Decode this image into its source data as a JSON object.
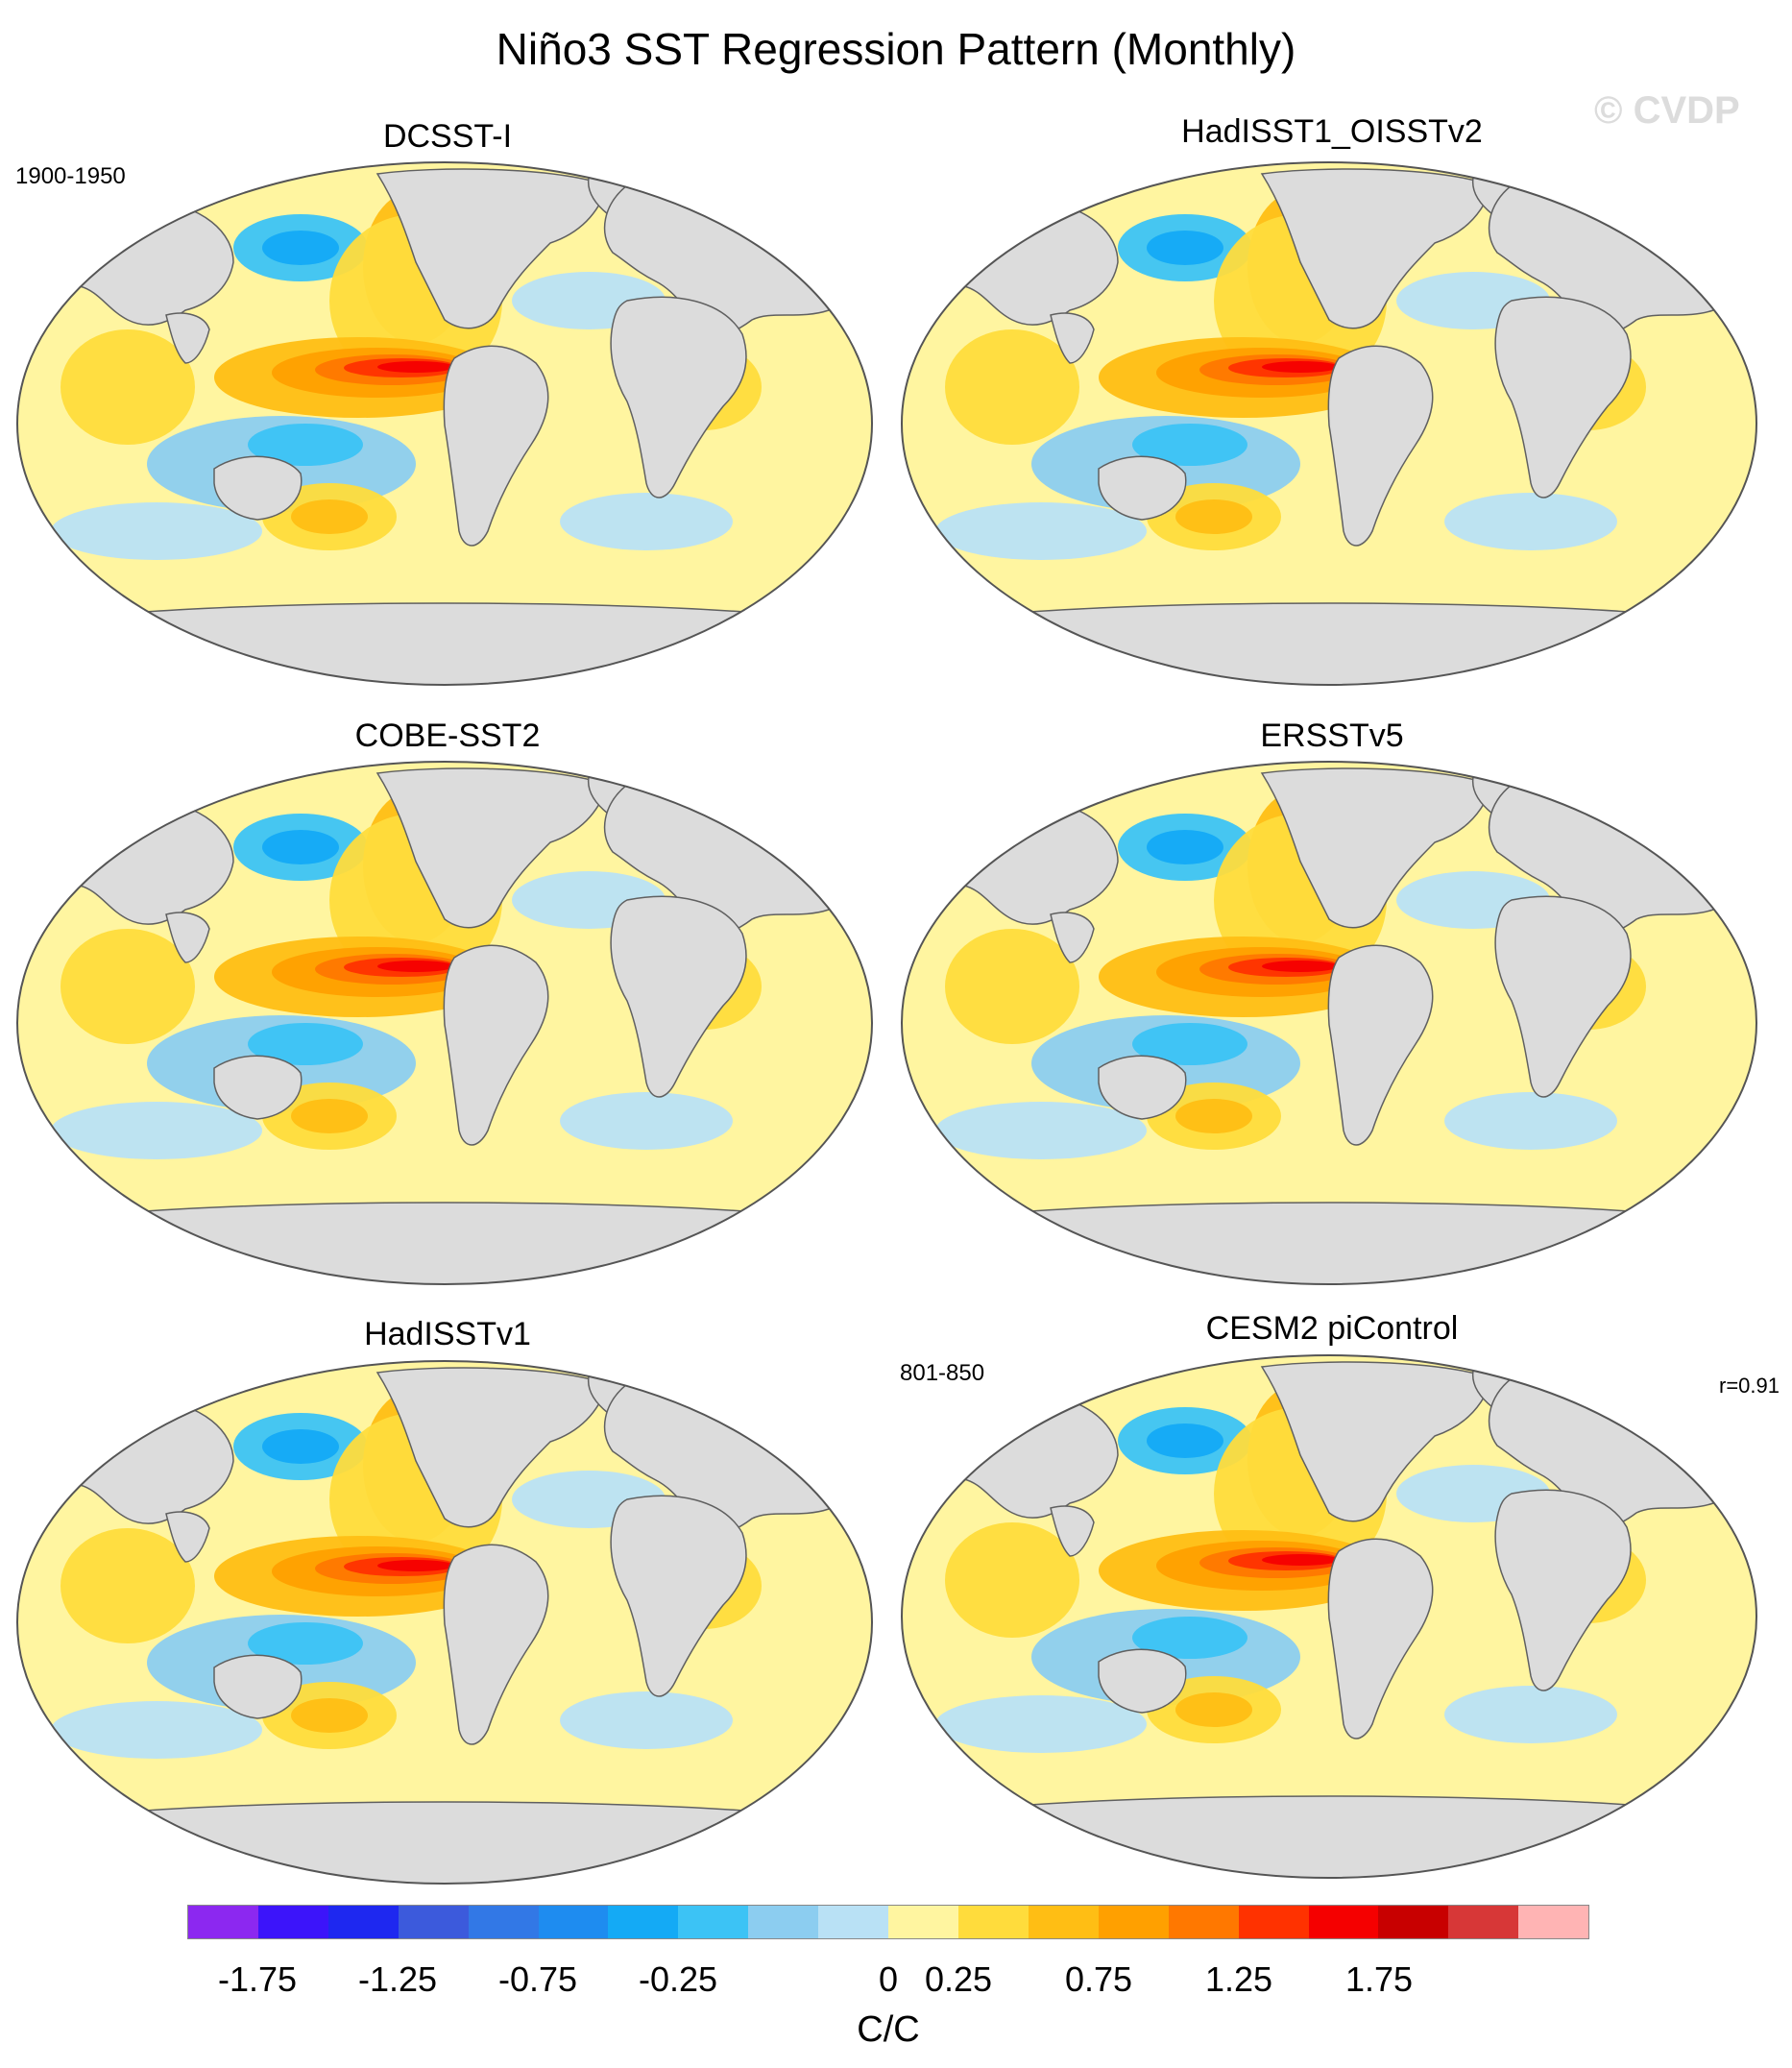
{
  "title": "Niño3 SST Regression Pattern (Monthly)",
  "watermark": "© CVDP",
  "obs_period": "1900-1950",
  "model_period": "801-850",
  "model_corr": "r=0.91",
  "panels": [
    {
      "name": "DCSST-I"
    },
    {
      "name": "HadISST1_OISSTv2"
    },
    {
      "name": "COBE-SST2"
    },
    {
      "name": "ERSSTv5"
    },
    {
      "name": "HadISSTv1"
    },
    {
      "name": "CESM2 piControl"
    }
  ],
  "colorbar": {
    "units": "C/C",
    "ticks": [
      "-1.75",
      "-1.25",
      "-0.75",
      "-0.25",
      "0",
      "0.25",
      "0.75",
      "1.25",
      "1.75"
    ],
    "colors": [
      "#8c28f0",
      "#3c14fa",
      "#1e28f0",
      "#3c5adc",
      "#3278e6",
      "#1e8cf0",
      "#14aaf5",
      "#3cc3f5",
      "#8ccdf0",
      "#b9e1f5",
      "#fff5a0",
      "#ffdc3c",
      "#ffbe14",
      "#ffa000",
      "#ff7800",
      "#ff3200",
      "#f50000",
      "#c80000",
      "#d73737",
      "#ffb4b4"
    ],
    "color_names": [
      "violet",
      "deep-blue",
      "blue",
      "royal-blue",
      "mid-blue",
      "sky-blue",
      "cyan-blue",
      "light-cyan",
      "pale-blue",
      "very-pale-blue",
      "pale-yellow",
      "yellow",
      "gold",
      "orange",
      "dark-orange",
      "red-orange",
      "red",
      "dark-red",
      "brick-red",
      "pink"
    ]
  },
  "map_colors": {
    "land": "#dcdcdc",
    "ocean_neutral": "#fff5a0",
    "ocean_coast": "#606060"
  }
}
